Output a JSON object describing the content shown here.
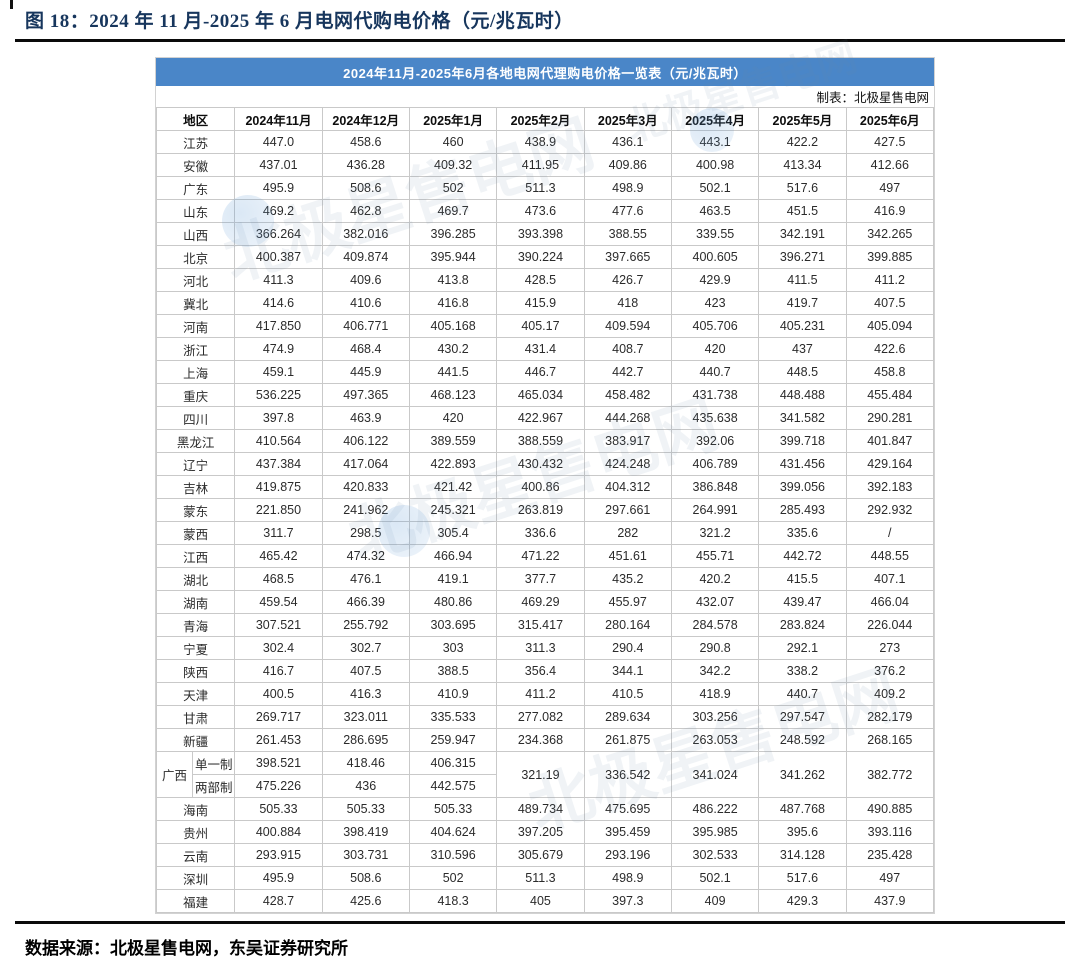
{
  "page": {
    "figure_title": "图 18：2024 年 11 月-2025 年 6 月电网代购电价格（元/兆瓦时）",
    "source_note": "数据来源：北极星售电网，东吴证券研究所"
  },
  "colors": {
    "header_bar_blue": "#4a86c8",
    "figure_title_navy": "#17365d",
    "grid_line": "#c9c9c9"
  },
  "watermark": {
    "text": "北极星售电网"
  },
  "table": {
    "title": "2024年11月-2025年6月各地电网代理购电价格一览表（元/兆瓦时）",
    "credit": "制表：北极星售电网",
    "columns": [
      "地区",
      "2024年11月",
      "2024年12月",
      "2025年1月",
      "2025年2月",
      "2025年3月",
      "2025年4月",
      "2025年5月",
      "2025年6月"
    ],
    "rows": [
      {
        "region": "江苏",
        "values": [
          "447.0",
          "458.6",
          "460",
          "438.9",
          "436.1",
          "443.1",
          "422.2",
          "427.5"
        ]
      },
      {
        "region": "安徽",
        "values": [
          "437.01",
          "436.28",
          "409.32",
          "411.95",
          "409.86",
          "400.98",
          "413.34",
          "412.66"
        ]
      },
      {
        "region": "广东",
        "values": [
          "495.9",
          "508.6",
          "502",
          "511.3",
          "498.9",
          "502.1",
          "517.6",
          "497"
        ]
      },
      {
        "region": "山东",
        "values": [
          "469.2",
          "462.8",
          "469.7",
          "473.6",
          "477.6",
          "463.5",
          "451.5",
          "416.9"
        ]
      },
      {
        "region": "山西",
        "values": [
          "366.264",
          "382.016",
          "396.285",
          "393.398",
          "388.55",
          "339.55",
          "342.191",
          "342.265"
        ]
      },
      {
        "region": "北京",
        "values": [
          "400.387",
          "409.874",
          "395.944",
          "390.224",
          "397.665",
          "400.605",
          "396.271",
          "399.885"
        ]
      },
      {
        "region": "河北",
        "values": [
          "411.3",
          "409.6",
          "413.8",
          "428.5",
          "426.7",
          "429.9",
          "411.5",
          "411.2"
        ]
      },
      {
        "region": "冀北",
        "values": [
          "414.6",
          "410.6",
          "416.8",
          "415.9",
          "418",
          "423",
          "419.7",
          "407.5"
        ]
      },
      {
        "region": "河南",
        "values": [
          "417.850",
          "406.771",
          "405.168",
          "405.17",
          "409.594",
          "405.706",
          "405.231",
          "405.094"
        ]
      },
      {
        "region": "浙江",
        "values": [
          "474.9",
          "468.4",
          "430.2",
          "431.4",
          "408.7",
          "420",
          "437",
          "422.6"
        ]
      },
      {
        "region": "上海",
        "values": [
          "459.1",
          "445.9",
          "441.5",
          "446.7",
          "442.7",
          "440.7",
          "448.5",
          "458.8"
        ]
      },
      {
        "region": "重庆",
        "values": [
          "536.225",
          "497.365",
          "468.123",
          "465.034",
          "458.482",
          "431.738",
          "448.488",
          "455.484"
        ]
      },
      {
        "region": "四川",
        "values": [
          "397.8",
          "463.9",
          "420",
          "422.967",
          "444.268",
          "435.638",
          "341.582",
          "290.281"
        ]
      },
      {
        "region": "黑龙江",
        "values": [
          "410.564",
          "406.122",
          "389.559",
          "388.559",
          "383.917",
          "392.06",
          "399.718",
          "401.847"
        ]
      },
      {
        "region": "辽宁",
        "values": [
          "437.384",
          "417.064",
          "422.893",
          "430.432",
          "424.248",
          "406.789",
          "431.456",
          "429.164"
        ]
      },
      {
        "region": "吉林",
        "values": [
          "419.875",
          "420.833",
          "421.42",
          "400.86",
          "404.312",
          "386.848",
          "399.056",
          "392.183"
        ]
      },
      {
        "region": "蒙东",
        "values": [
          "221.850",
          "241.962",
          "245.321",
          "263.819",
          "297.661",
          "264.991",
          "285.493",
          "292.932"
        ]
      },
      {
        "region": "蒙西",
        "values": [
          "311.7",
          "298.5",
          "305.4",
          "336.6",
          "282",
          "321.2",
          "335.6",
          "/"
        ]
      },
      {
        "region": "江西",
        "values": [
          "465.42",
          "474.32",
          "466.94",
          "471.22",
          "451.61",
          "455.71",
          "442.72",
          "448.55"
        ]
      },
      {
        "region": "湖北",
        "values": [
          "468.5",
          "476.1",
          "419.1",
          "377.7",
          "435.2",
          "420.2",
          "415.5",
          "407.1"
        ]
      },
      {
        "region": "湖南",
        "values": [
          "459.54",
          "466.39",
          "480.86",
          "469.29",
          "455.97",
          "432.07",
          "439.47",
          "466.04"
        ]
      },
      {
        "region": "青海",
        "values": [
          "307.521",
          "255.792",
          "303.695",
          "315.417",
          "280.164",
          "284.578",
          "283.824",
          "226.044"
        ]
      },
      {
        "region": "宁夏",
        "values": [
          "302.4",
          "302.7",
          "303",
          "311.3",
          "290.4",
          "290.8",
          "292.1",
          "273"
        ]
      },
      {
        "region": "陕西",
        "values": [
          "416.7",
          "407.5",
          "388.5",
          "356.4",
          "344.1",
          "342.2",
          "338.2",
          "376.2"
        ]
      },
      {
        "region": "天津",
        "values": [
          "400.5",
          "416.3",
          "410.9",
          "411.2",
          "410.5",
          "418.9",
          "440.7",
          "409.2"
        ]
      },
      {
        "region": "甘肃",
        "values": [
          "269.717",
          "323.011",
          "335.533",
          "277.082",
          "289.634",
          "303.256",
          "297.547",
          "282.179"
        ]
      },
      {
        "region": "新疆",
        "values": [
          "261.453",
          "286.695",
          "259.947",
          "234.368",
          "261.875",
          "263.053",
          "248.592",
          "268.165"
        ]
      },
      {
        "region": "广西",
        "type": "split",
        "sub_rows": [
          {
            "label": "单一制",
            "values": [
              "398.521",
              "418.46",
              "406.315"
            ]
          },
          {
            "label": "两部制",
            "values": [
              "475.226",
              "436",
              "442.575"
            ]
          }
        ],
        "merged_values": [
          "321.19",
          "336.542",
          "341.024",
          "341.262",
          "382.772"
        ]
      },
      {
        "region": "海南",
        "values": [
          "505.33",
          "505.33",
          "505.33",
          "489.734",
          "475.695",
          "486.222",
          "487.768",
          "490.885"
        ]
      },
      {
        "region": "贵州",
        "values": [
          "400.884",
          "398.419",
          "404.624",
          "397.205",
          "395.459",
          "395.985",
          "395.6",
          "393.116"
        ]
      },
      {
        "region": "云南",
        "values": [
          "293.915",
          "303.731",
          "310.596",
          "305.679",
          "293.196",
          "302.533",
          "314.128",
          "235.428"
        ]
      },
      {
        "region": "深圳",
        "values": [
          "495.9",
          "508.6",
          "502",
          "511.3",
          "498.9",
          "502.1",
          "517.6",
          "497"
        ]
      },
      {
        "region": "福建",
        "values": [
          "428.7",
          "425.6",
          "418.3",
          "405",
          "397.3",
          "409",
          "429.3",
          "437.9"
        ]
      }
    ]
  }
}
